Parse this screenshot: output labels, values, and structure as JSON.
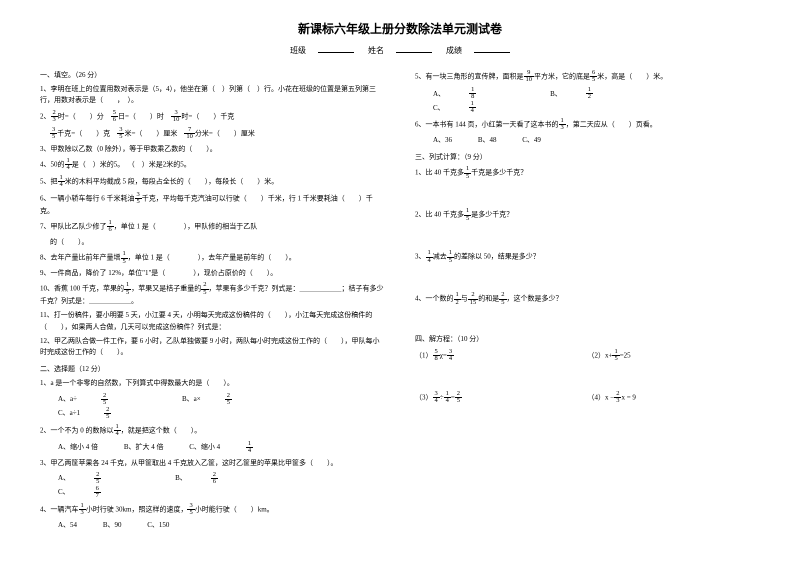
{
  "title": "新课标六年级上册分数除法单元测试卷",
  "header": {
    "class": "班级",
    "name": "姓名",
    "score": "成绩"
  },
  "left": {
    "sec1_title": "一、填空。（26 分）",
    "q1": "1、李明在班上的位置用数对表示是（5，4），他坐在第（　）列第（　）行。小花在班级的位置是第五列第三行，用数对表示是（　　，　）。",
    "q2_a": "时=（　　）分",
    "q2_b": "日=（　　）时",
    "q2_c": "时=（　　）千克",
    "q2_d": "千克=（　　）克",
    "q2_e": "米=（　　）厘米",
    "q2_f": "分米=（　　）厘米",
    "q3": "3、甲数除以乙数（0 除外），等于甲数乘乙数的（　　）。",
    "q4_a": "0里有（　　）",
    "q4_b": "是（　　）",
    "q4_pre": "4、50的",
    "q4_mid": "是（　）米的5。",
    "q4_after": "（　）米是2米的5。",
    "q5_pre": "把",
    "q5_text": "米的木料平均截成 5 段，每段占全长的（　　），每段长（　　）米。",
    "q6": "一辆小轿车每行 6 千米耗油",
    "q6_b": "千克，平均每千克汽油可以行驶（　　）千米，行 1 千米要耗油（　　）千克。",
    "q7_pre": "7、甲队比乙队少修了",
    "q7_mid": "，单位 1 是（　　　　），甲队修的相当于乙队",
    "q7_end": "的（　　）。",
    "q8_pre": "8、去年产量比前年产量增",
    "q8_mid": "，单位 1 是（　　　　），去年产量是前年的（　　）。",
    "q9": "9、一件商品，降价了 12%，单位\"1\"是（　　　　），现价占原价的（　　）。",
    "q10_pre": "10、香蕉 100 千克，苹果的",
    "q10_mid": "，苹果又是桔子重量的",
    "q10_end": "，苹果有多少千克？列式是：＿＿＿＿＿＿；桔子有多少千克？列式是：＿＿＿＿＿＿。",
    "q11": "11、打一份稿件，要小明要 5 天，小江要 4 天，小明每天完成这份稿件的（　　），小江每天完成这份稿件的（　　），如果两人合做，几天可以完成这份稿件？列式是：",
    "q12": "12、甲乙两队合做一件工作，要 6 小时，乙队单独做要 9 小时，两队每小时完成这份工作的（　　），甲队每小时完成这份工作的（　　）。",
    "sec2_title": "二、选择题（12 分）",
    "s2q1": "1、a 是一个非零的自然数，下列算式中得数最大的是（　　）。",
    "s2q1_a": "A、a÷",
    "s2q1_b": "B、a×",
    "s2q1_c": "C、a÷1",
    "s2q2_pre": "2、一个不为 0 的数除以",
    "s2q2_mid": "，就是把这个数（　　）。",
    "s2q2_a": "A、缩小 4 倍",
    "s2q2_b": "B、扩大 4 倍",
    "s2q2_c": "C、缩小 4",
    "s2q3": "3、甲乙两筐苹果各 24 千克，从甲筐取出 4 千克放入乙筐，这时乙筐里的苹果比甲筐多（　　）。",
    "s2q3_a": "A、",
    "s2q3_b": "B、",
    "s2q3_c": "C、",
    "s2q4_pre": "4、一辆汽车",
    "s2q4_mid": "小时行驶 30km，照这样的速度，",
    "s2q4_end": "小时能行驶（　　）km。",
    "s2q4_a": "A、54",
    "s2q4_b": "B、90",
    "s2q4_c": "C、150"
  },
  "right": {
    "s2q5_pre": "5、有一块三角形的宣传牌，面积是",
    "s2q5_mid": "平方米，它的底是",
    "s2q5_end": "米，高是（　　）米。",
    "s2q5_a": "A、",
    "s2q5_b": "B、",
    "s2q5_c": "C、",
    "s2q6_pre": "6、一本书有 144 页，小红第一天看了这本书的",
    "s2q6_end": "，第二天应从（　　）页看。",
    "s2q6_a": "A、36",
    "s2q6_b": "B、48",
    "s2q6_c": "C、49",
    "sec3_title": "三、列式计算：（9 分）",
    "s3q1_pre": "1、比 40 千克多",
    "s3q1_end": "千克是多少千克？",
    "s3q2_pre": "2、比 40 千克多",
    "s3q2_end": "是多少千克？",
    "s3q3_mid": "减去",
    "s3q3_end": "的差除以 50，结果是多少？",
    "s3q4_pre": "4、一个数的",
    "s3q4_mid": "与",
    "s3q4_mid2": "的和是",
    "s3q4_end": "，这个数是多少？",
    "sec4_title": "四、解方程：（10 分）",
    "s4q1_pre": "（1）",
    "s4q2_pre": "（2）x+",
    "s4q2_end": "=25",
    "s4q3_pre": "（3）",
    "s4q4_pre": "（4）x −",
    "s4q4_end": "x = 9"
  },
  "fractions": {
    "f2_3": {
      "n": "2",
      "d": "3"
    },
    "f5_6": {
      "n": "5",
      "d": "6"
    },
    "f3_10": {
      "n": "3",
      "d": "10"
    },
    "f3_5": {
      "n": "3",
      "d": "5"
    },
    "f7_10": {
      "n": "7",
      "d": "10"
    },
    "f1_4": {
      "n": "1",
      "d": "4"
    },
    "f1_6": {
      "n": "1",
      "d": "6"
    },
    "f1_5": {
      "n": "1",
      "d": "5"
    },
    "f2_5": {
      "n": "2",
      "d": "5"
    },
    "f1_3": {
      "n": "1",
      "d": "3"
    },
    "f1_2": {
      "n": "1",
      "d": "2"
    },
    "f5_8": {
      "n": "5",
      "d": "8"
    },
    "f3_4": {
      "n": "3",
      "d": "4"
    },
    "f6_7": {
      "n": "6",
      "d": "7"
    },
    "f9_10": {
      "n": "9",
      "d": "10"
    },
    "f6_5": {
      "n": "6",
      "d": "5"
    },
    "f1_8": {
      "n": "1",
      "d": "8"
    },
    "f2_15": {
      "n": "2",
      "d": "15"
    }
  }
}
